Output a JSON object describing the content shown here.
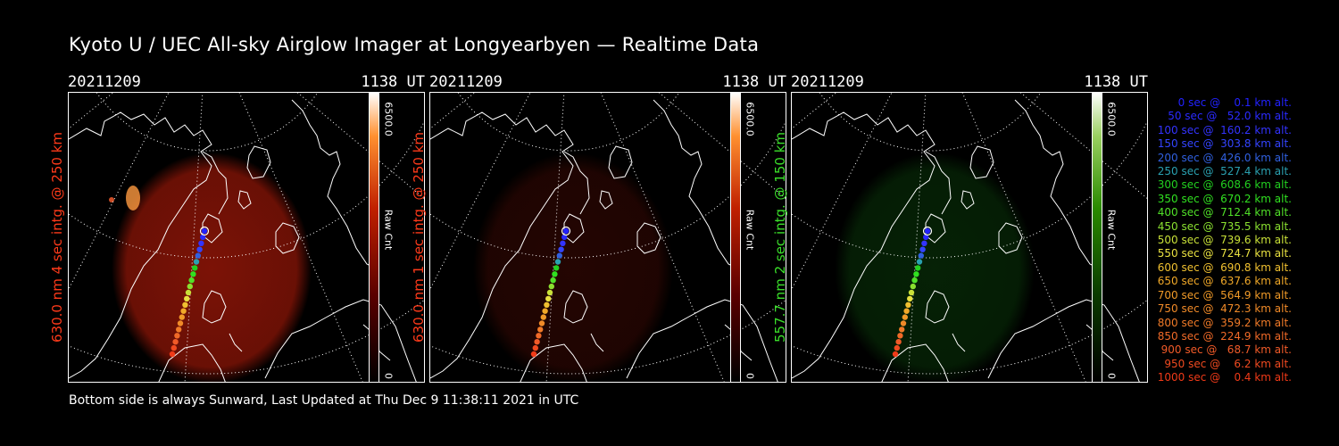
{
  "title": "Kyoto U / UEC All-sky Airglow Imager at Longyearbyen — Realtime Data",
  "footer": "Bottom side is always Sunward, Last Updated at Thu Dec  9 11:38:11 2021 in UTC",
  "panels": [
    {
      "date": "20211209",
      "time": "1138 UT",
      "ylabel": "630.0 nm 4 sec intg. @ 250 km",
      "ylabel_color": "#ff3a1a",
      "cbar_max": "6500.0",
      "cbar_min": "0",
      "cbar_unit": "Raw Cnt",
      "colormap": "red",
      "intensity": 0.62
    },
    {
      "date": "20211209",
      "time": "1138 UT",
      "ylabel": "630.0 nm 1 sec intg. @ 250 km",
      "ylabel_color": "#ff3a1a",
      "cbar_max": "6500.0",
      "cbar_min": "0",
      "cbar_unit": "Raw Cnt",
      "colormap": "red",
      "intensity": 0.18
    },
    {
      "date": "20211209",
      "time": "1138 UT",
      "ylabel": "557.7 nm 2 sec intg. @ 150 km",
      "ylabel_color": "#3adf2a",
      "cbar_max": "6500.0",
      "cbar_min": "0",
      "cbar_unit": "Raw Cnt",
      "colormap": "green",
      "intensity": 0.28
    }
  ],
  "legend": [
    {
      "text": "   0 sec @    0.1 km alt.",
      "color": "#2222ff"
    },
    {
      "text": "  50 sec @   52.0 km alt.",
      "color": "#2a2aff"
    },
    {
      "text": " 100 sec @  160.2 km alt.",
      "color": "#3333ff"
    },
    {
      "text": " 150 sec @  303.8 km alt.",
      "color": "#3344ff"
    },
    {
      "text": " 200 sec @  426.0 km alt.",
      "color": "#3060e0"
    },
    {
      "text": " 250 sec @  527.4 km alt.",
      "color": "#2aa0b0"
    },
    {
      "text": " 300 sec @  608.6 km alt.",
      "color": "#22d020"
    },
    {
      "text": " 350 sec @  670.2 km alt.",
      "color": "#30e020"
    },
    {
      "text": " 400 sec @  712.4 km alt.",
      "color": "#50e028"
    },
    {
      "text": " 450 sec @  735.5 km alt.",
      "color": "#8ae030"
    },
    {
      "text": " 500 sec @  739.6 km alt.",
      "color": "#c8e038"
    },
    {
      "text": " 550 sec @  724.7 km alt.",
      "color": "#e8e040"
    },
    {
      "text": " 600 sec @  690.8 km alt.",
      "color": "#f0c030"
    },
    {
      "text": " 650 sec @  637.6 km alt.",
      "color": "#f0a828"
    },
    {
      "text": " 700 sec @  564.9 km alt.",
      "color": "#f09a28"
    },
    {
      "text": " 750 sec @  472.3 km alt.",
      "color": "#f08a28"
    },
    {
      "text": " 800 sec @  359.2 km alt.",
      "color": "#f07a28"
    },
    {
      "text": " 850 sec @  224.9 km alt.",
      "color": "#f06a28"
    },
    {
      "text": " 900 sec @   68.7 km alt.",
      "color": "#f05a28"
    },
    {
      "text": " 950 sec @    6.2 km alt.",
      "color": "#f04a20"
    },
    {
      "text": "1000 sec @    0.4 km alt.",
      "color": "#f03a18"
    }
  ]
}
